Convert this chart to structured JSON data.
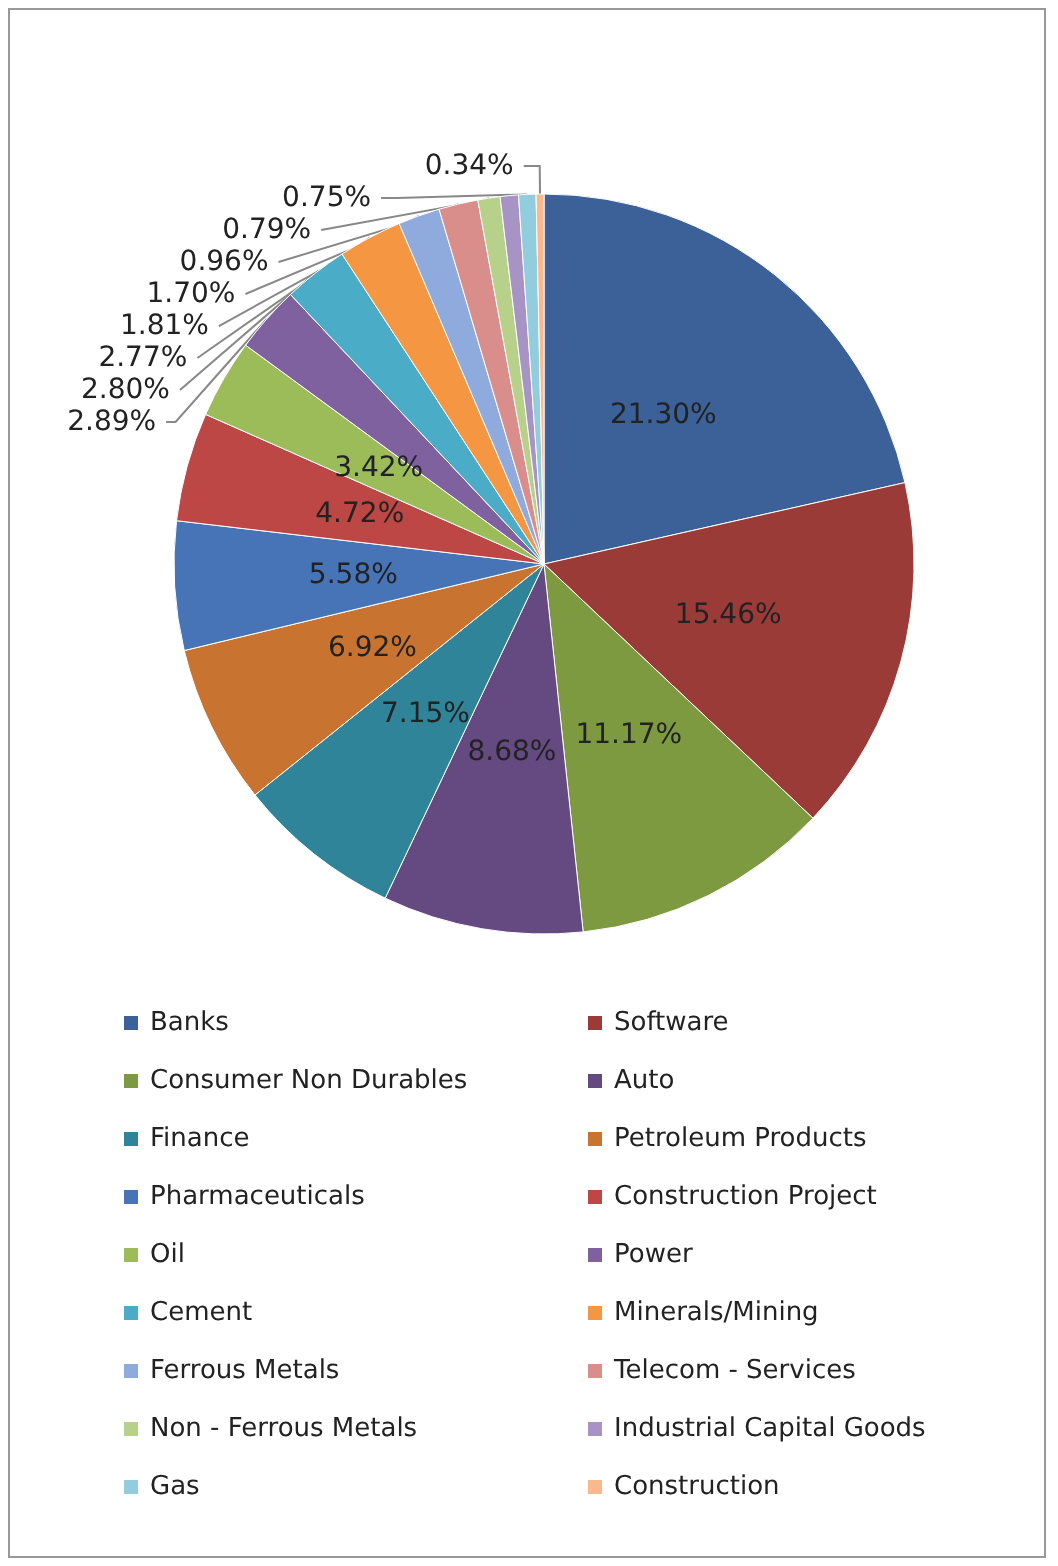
{
  "chart_data": {
    "type": "pie",
    "categories": [
      "Banks",
      "Software",
      "Consumer Non Durables",
      "Auto",
      "Finance",
      "Petroleum Products",
      "Pharmaceuticals",
      "Construction Project",
      "Oil",
      "Power",
      "Cement",
      "Minerals/Mining",
      "Ferrous Metals",
      "Telecom - Services",
      "Non - Ferrous Metals",
      "Industrial Capital Goods",
      "Gas",
      "Construction"
    ],
    "values": [
      21.3,
      15.46,
      11.17,
      8.68,
      7.15,
      6.92,
      5.58,
      4.72,
      3.42,
      2.89,
      2.8,
      2.77,
      1.81,
      1.7,
      0.96,
      0.79,
      0.75,
      0.34
    ],
    "value_labels": [
      "21.30%",
      "15.46%",
      "11.17%",
      "8.68%",
      "7.15%",
      "6.92%",
      "5.58%",
      "4.72%",
      "3.42%",
      "2.89%",
      "2.80%",
      "2.77%",
      "1.81%",
      "1.70%",
      "0.96%",
      "0.79%",
      "0.75%",
      "0.34%"
    ],
    "colors": [
      "#3c6098",
      "#9b3b38",
      "#7e9a41",
      "#644a80",
      "#30849a",
      "#c87330",
      "#4774b7",
      "#bc4744",
      "#9cbb59",
      "#7f61a0",
      "#4aacc6",
      "#f59642",
      "#8faadc",
      "#d98e8b",
      "#b8d18a",
      "#a794c4",
      "#92cddd",
      "#f9b98d"
    ],
    "legend": "bottom"
  }
}
